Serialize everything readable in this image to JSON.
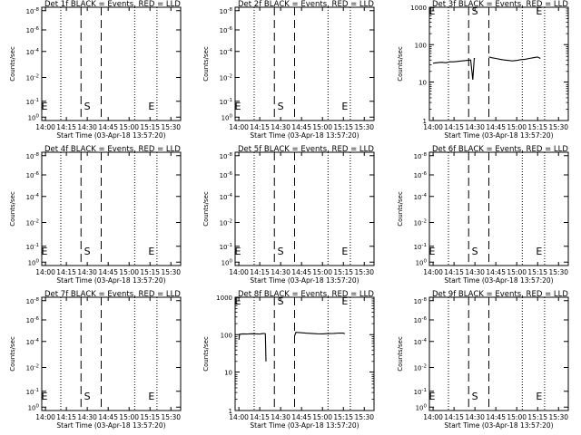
{
  "page": {
    "background": "#ffffff",
    "ink": "#000000"
  },
  "xlabel": "Start Time (03-Apr-18 13:57:20)",
  "ylabel": "Counts/sec",
  "xtick_labels": [
    "14:00",
    "14:15",
    "14:30",
    "14:45",
    "15:00",
    "15:15",
    "15:30"
  ],
  "xtick_minutes": [
    0,
    15,
    30,
    45,
    60,
    75,
    90
  ],
  "xlim_minutes": [
    -2.67,
    97
  ],
  "ytick_labels_empty": [
    "10^-8",
    "10^-6",
    "10^-4",
    "10^-2",
    "10^-1",
    "10^0"
  ],
  "ytick_labels_active": [
    "1000",
    "100",
    "10",
    "1"
  ],
  "events": {
    "dotted_minutes": [
      11,
      64
    ],
    "dashed_minutes": [
      25.5,
      40
    ],
    "marker_S": {
      "label": "S",
      "minute": 30
    },
    "marker_E": {
      "label": "E",
      "minute": 80
    }
  },
  "chart_data": [
    {
      "type": "line",
      "title": "Det 1f BLACK = Events, RED = LLD",
      "scale": "empty",
      "series": []
    },
    {
      "type": "line",
      "title": "Det 2f BLACK = Events, RED = LLD",
      "scale": "empty",
      "series": []
    },
    {
      "type": "line",
      "title": "Det 3f BLACK = Events, RED = LLD",
      "scale": "log",
      "ylim": [
        1,
        1000
      ],
      "series": [
        {
          "color": "#000000",
          "x": [
            0,
            3,
            6,
            9,
            12,
            15,
            18,
            21,
            24,
            27,
            28.5,
            29.5,
            30
          ],
          "y": [
            33,
            34,
            35,
            34,
            36,
            36,
            37,
            38,
            39,
            40,
            12,
            44,
            44
          ]
        },
        {
          "color": "#000000",
          "x": [
            40,
            42,
            45,
            48,
            51,
            54,
            57,
            60,
            63,
            66,
            69,
            72,
            75,
            77
          ],
          "y": [
            48,
            46,
            44,
            42,
            40,
            39,
            38,
            39,
            41,
            42,
            44,
            46,
            48,
            44
          ]
        }
      ]
    },
    {
      "type": "line",
      "title": "Det 4f BLACK = Events, RED = LLD",
      "scale": "empty",
      "series": []
    },
    {
      "type": "line",
      "title": "Det 5f BLACK = Events, RED = LLD",
      "scale": "empty",
      "series": []
    },
    {
      "type": "line",
      "title": "Det 6f BLACK = Events, RED = LLD",
      "scale": "empty",
      "series": []
    },
    {
      "type": "line",
      "title": "Det 7f BLACK = Events, RED = LLD",
      "scale": "empty",
      "series": []
    },
    {
      "type": "line",
      "title": "Det 8f BLACK = Events, RED = LLD",
      "scale": "log",
      "ylim": [
        1,
        1000
      ],
      "series": [
        {
          "color": "#000000",
          "x": [
            0,
            0.5,
            3,
            6,
            9,
            12,
            15,
            18,
            19,
            19.5
          ],
          "y": [
            75,
            105,
            107,
            106,
            108,
            107,
            106,
            110,
            108,
            20
          ]
        },
        {
          "color": "#000000",
          "x": [
            40,
            41,
            44,
            48,
            52,
            56,
            60,
            64,
            68,
            72,
            75,
            76
          ],
          "y": [
            95,
            118,
            115,
            112,
            110,
            108,
            107,
            109,
            110,
            113,
            112,
            108
          ]
        }
      ]
    },
    {
      "type": "line",
      "title": "Det 9f BLACK = Events, RED = LLD",
      "scale": "empty",
      "series": []
    }
  ]
}
